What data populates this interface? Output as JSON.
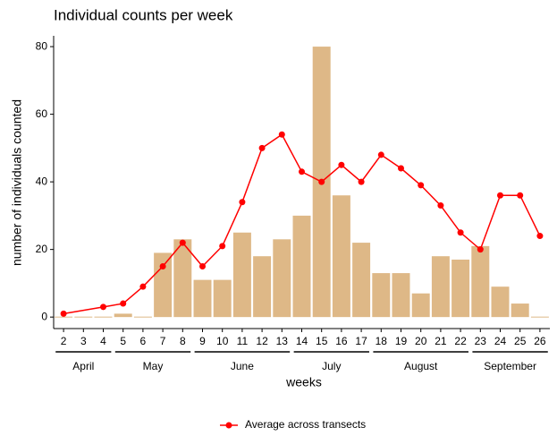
{
  "chart_data": {
    "type": "bar-line",
    "title": "Individual counts per week",
    "xlabel": "weeks",
    "ylabel": "number of individuals counted",
    "x": [
      2,
      3,
      4,
      5,
      6,
      7,
      8,
      9,
      10,
      11,
      12,
      13,
      14,
      15,
      16,
      17,
      18,
      19,
      20,
      21,
      22,
      23,
      24,
      25,
      26
    ],
    "xlim": [
      1.5,
      26.5
    ],
    "xticks": [
      2,
      3,
      4,
      5,
      6,
      7,
      8,
      9,
      10,
      11,
      12,
      13,
      14,
      15,
      16,
      17,
      18,
      19,
      20,
      21,
      22,
      23,
      24,
      25,
      26
    ],
    "values": [
      0,
      0,
      0,
      1,
      0,
      19,
      23,
      11,
      11,
      25,
      18,
      23,
      30,
      80,
      36,
      22,
      13,
      13,
      7,
      18,
      17,
      21,
      9,
      4,
      0
    ],
    "color": "#deb887",
    "ylim": [
      -3.4,
      83.2
    ],
    "yticks": [
      0,
      20,
      40,
      60,
      80
    ],
    "series": [
      {
        "name": "Average across transects",
        "color": "#ff0000",
        "x": [
          2,
          4,
          5,
          6,
          7,
          8,
          9,
          10,
          11,
          12,
          13,
          14,
          15,
          16,
          17,
          18,
          19,
          20,
          21,
          22,
          23,
          24,
          25,
          26
        ],
        "values": [
          1,
          3,
          4,
          9,
          15,
          22,
          15,
          21,
          34,
          50,
          54,
          43,
          40,
          45,
          40,
          48,
          44,
          39,
          33,
          25,
          20,
          36,
          36,
          24
        ]
      }
    ],
    "months": [
      {
        "label": "April",
        "from": 2,
        "to": 4
      },
      {
        "label": "May",
        "from": 5,
        "to": 8
      },
      {
        "label": "June",
        "from": 9,
        "to": 13
      },
      {
        "label": "July",
        "from": 14,
        "to": 17
      },
      {
        "label": "August",
        "from": 18,
        "to": 22
      },
      {
        "label": "September",
        "from": 23,
        "to": 26
      }
    ],
    "legend": "bottom"
  }
}
